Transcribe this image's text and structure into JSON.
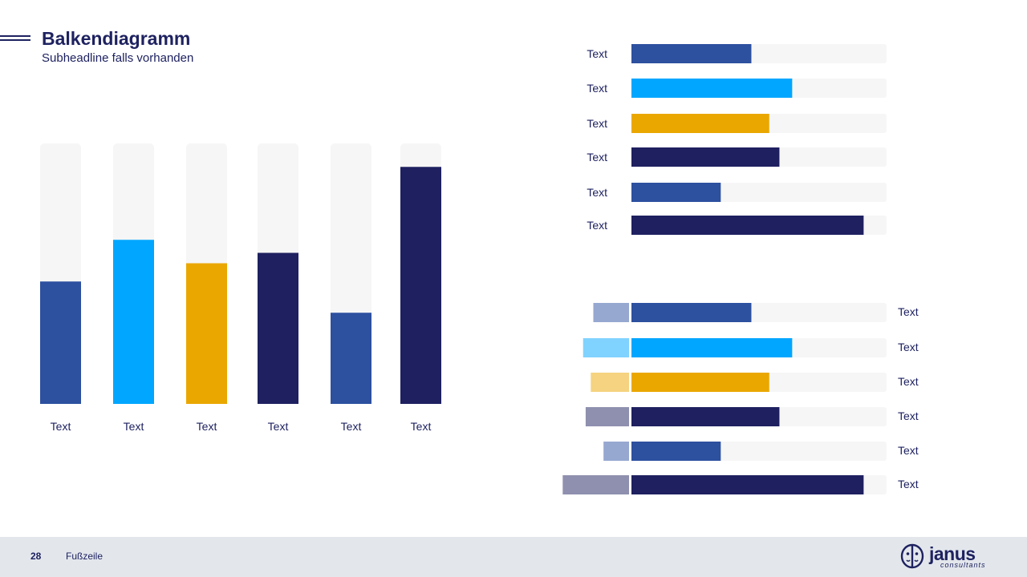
{
  "header": {
    "title": "Balkendiagramm",
    "subtitle": "Subheadline falls vorhanden"
  },
  "footer": {
    "page_number": "28",
    "text": "Fußzeile"
  },
  "logo": {
    "name": "janus",
    "tagline": "consultants",
    "icon": "janus-head-icon"
  },
  "colors": {
    "track": "#f6f6f6",
    "medium_blue": "#2d509f",
    "light_blue": "#00a6ff",
    "gold": "#eaa700",
    "navy": "#1e2060",
    "text": "#1e2260"
  },
  "chart_data": [
    {
      "type": "bar",
      "orientation": "vertical",
      "categories": [
        "Text",
        "Text",
        "Text",
        "Text",
        "Text",
        "Text"
      ],
      "values": [
        47,
        63,
        54,
        58,
        35,
        91
      ],
      "ylim": [
        0,
        100
      ],
      "colors": [
        "#2d509f",
        "#00a6ff",
        "#eaa700",
        "#1e2060",
        "#2d509f",
        "#1e2060"
      ],
      "grid": false
    },
    {
      "type": "bar",
      "orientation": "horizontal",
      "categories": [
        "Text",
        "Text",
        "Text",
        "Text",
        "Text",
        "Text"
      ],
      "values": [
        47,
        63,
        54,
        58,
        35,
        91
      ],
      "xlim": [
        0,
        100
      ],
      "colors": [
        "#2d509f",
        "#00a6ff",
        "#eaa700",
        "#1e2060",
        "#2d509f",
        "#1e2060"
      ],
      "label_side": "left",
      "grid": false
    },
    {
      "type": "bar",
      "orientation": "horizontal-diverging",
      "categories": [
        "Text",
        "Text",
        "Text",
        "Text",
        "Text",
        "Text"
      ],
      "series": [
        {
          "values": [
            47,
            63,
            54,
            58,
            35,
            91
          ],
          "direction": "right",
          "colors": [
            "#2d509f",
            "#00a6ff",
            "#eaa700",
            "#1e2060",
            "#2d509f",
            "#1e2060"
          ]
        },
        {
          "values": [
            14,
            18,
            15,
            17,
            10,
            26
          ],
          "direction": "left",
          "colors": [
            "#96a8d0",
            "#80d3ff",
            "#f5d380",
            "#8f90af",
            "#96a8d0",
            "#8f90af"
          ]
        }
      ],
      "xlim": [
        0,
        100
      ],
      "label_side": "right",
      "grid": false
    }
  ]
}
